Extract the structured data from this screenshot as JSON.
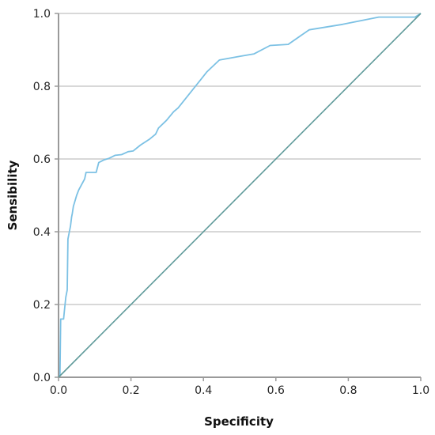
{
  "chart_data": {
    "type": "line",
    "xlabel": "Specificity",
    "ylabel": "Sensibility",
    "xlim": [
      0,
      1
    ],
    "ylim": [
      0,
      1
    ],
    "x_ticks": [
      "0.0",
      "0.2",
      "0.4",
      "0.6",
      "0.8",
      "1.0"
    ],
    "y_ticks": [
      "0.0",
      "0.2",
      "0.4",
      "0.6",
      "0.8",
      "1.0"
    ],
    "grid": "horizontal",
    "colors": {
      "roc": "#7cc1e4",
      "reference": "#5f9a9a",
      "grid": "#cccccc",
      "axis": "#9a9a9a"
    },
    "series": [
      {
        "id": "roc",
        "x": [
          0,
          0.004,
          0.006,
          0.006,
          0.014,
          0.016,
          0.02,
          0.024,
          0.026,
          0.03,
          0.033,
          0.036,
          0.038,
          0.041,
          0.044,
          0.05,
          0.056,
          0.064,
          0.072,
          0.076,
          0.092,
          0.104,
          0.111,
          0.124,
          0.14,
          0.156,
          0.174,
          0.192,
          0.206,
          0.226,
          0.252,
          0.268,
          0.276,
          0.298,
          0.318,
          0.33,
          0.37,
          0.41,
          0.444,
          0.5,
          0.54,
          0.584,
          0.634,
          0.692,
          0.784,
          0.884,
          0.984,
          1.0
        ],
        "y": [
          0,
          0.005,
          0.155,
          0.16,
          0.16,
          0.18,
          0.22,
          0.24,
          0.38,
          0.4,
          0.415,
          0.44,
          0.45,
          0.47,
          0.48,
          0.5,
          0.515,
          0.53,
          0.545,
          0.563,
          0.563,
          0.563,
          0.59,
          0.597,
          0.602,
          0.61,
          0.612,
          0.62,
          0.622,
          0.638,
          0.655,
          0.668,
          0.685,
          0.706,
          0.73,
          0.74,
          0.79,
          0.84,
          0.872,
          0.882,
          0.889,
          0.912,
          0.915,
          0.955,
          0.97,
          0.99,
          0.99,
          1.0
        ]
      },
      {
        "id": "reference",
        "x": [
          0,
          1
        ],
        "y": [
          0,
          1
        ]
      }
    ]
  }
}
